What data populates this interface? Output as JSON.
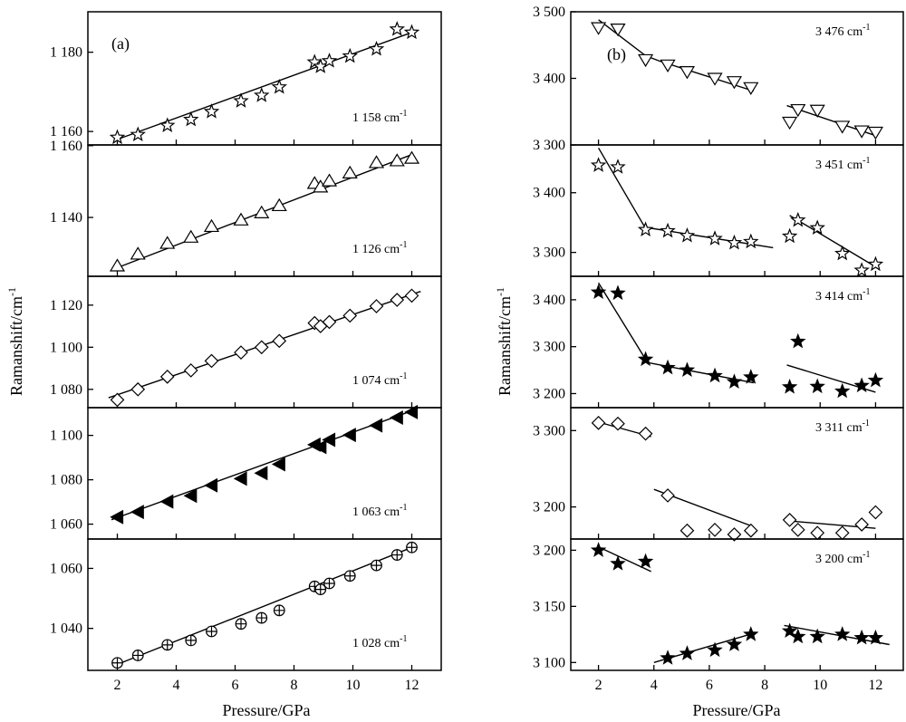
{
  "chart_data": [
    {
      "panel": "a",
      "type": "scatter",
      "panel_label": "(a)",
      "xlabel": "Pressure/GPa",
      "ylabel": "Ramanshift/cm-1",
      "ylabel_main": "Ramanshift/cm",
      "ylabel_sup": "-1",
      "xlim": [
        1,
        13
      ],
      "xticks": [
        2,
        4,
        6,
        8,
        10,
        12
      ],
      "xtick_labels": [
        "2",
        "4",
        "6",
        "8",
        "10",
        "12"
      ],
      "subplots": [
        {
          "mode": "1 158 cm-1",
          "mode_main": "1 158 cm",
          "mode_sup": "-1",
          "marker": "star-open",
          "ylim": [
            1156.6,
            1190.2
          ],
          "yticks": [
            1160,
            1180
          ],
          "ytick_labels": [
            "1 160",
            "1 180"
          ],
          "points": [
            [
              2.0,
              1158.5
            ],
            [
              2.7,
              1159.2
            ],
            [
              3.7,
              1161.5
            ],
            [
              4.5,
              1163.0
            ],
            [
              5.2,
              1165.0
            ],
            [
              6.2,
              1167.7
            ],
            [
              6.9,
              1169.1
            ],
            [
              7.5,
              1171.2
            ],
            [
              8.7,
              1177.5
            ],
            [
              8.9,
              1176.4
            ],
            [
              9.2,
              1177.8
            ],
            [
              9.9,
              1179.0
            ],
            [
              10.8,
              1180.8
            ],
            [
              11.5,
              1185.8
            ],
            [
              12.0,
              1185.0
            ]
          ],
          "fits": [
            [
              [
                2.0,
                1158.0
              ],
              [
                12.0,
                1185.0
              ]
            ]
          ]
        },
        {
          "mode": "1 126 cm-1",
          "mode_main": "1 126 cm",
          "mode_sup": "-1",
          "marker": "triangle-up-open",
          "ylim": [
            1123.6,
            1160.2
          ],
          "yticks": [
            1140,
            1160
          ],
          "ytick_labels": [
            "1 140",
            "1 160"
          ],
          "points": [
            [
              2.0,
              1126.5
            ],
            [
              2.7,
              1129.8
            ],
            [
              3.7,
              1132.8
            ],
            [
              4.5,
              1134.5
            ],
            [
              5.2,
              1137.5
            ],
            [
              6.2,
              1139.3
            ],
            [
              6.9,
              1141.3
            ],
            [
              7.5,
              1143.3
            ],
            [
              8.7,
              1149.5
            ],
            [
              8.9,
              1148.5
            ],
            [
              9.2,
              1150.2
            ],
            [
              9.9,
              1152.4
            ],
            [
              10.8,
              1155.3
            ],
            [
              11.5,
              1155.8
            ],
            [
              12.0,
              1156.5
            ]
          ],
          "fits": [
            [
              [
                2.0,
                1126.0
              ],
              [
                12.0,
                1157.5
              ]
            ]
          ]
        },
        {
          "mode": "1 074 cm-1",
          "mode_main": "1 074 cm",
          "mode_sup": "-1",
          "marker": "diamond-open",
          "ylim": [
            1071.3,
            1133.7
          ],
          "yticks": [
            1080,
            1100,
            1120
          ],
          "ytick_labels": [
            "1 080",
            "1 100",
            "1 120"
          ],
          "points": [
            [
              2.0,
              1075.0
            ],
            [
              2.7,
              1080.0
            ],
            [
              3.7,
              1086.0
            ],
            [
              4.5,
              1089.0
            ],
            [
              5.2,
              1093.5
            ],
            [
              6.2,
              1097.5
            ],
            [
              6.9,
              1100.0
            ],
            [
              7.5,
              1103.0
            ],
            [
              8.7,
              1111.5
            ],
            [
              8.9,
              1110.0
            ],
            [
              9.2,
              1112.0
            ],
            [
              9.9,
              1115.0
            ],
            [
              10.8,
              1119.5
            ],
            [
              11.5,
              1122.5
            ],
            [
              12.0,
              1124.5
            ]
          ],
          "fits": [
            [
              [
                1.7,
                1076.0
              ],
              [
                12.3,
                1126.5
              ]
            ]
          ]
        },
        {
          "mode": "1 063 cm-1",
          "mode_main": "1 063 cm",
          "mode_sup": "-1",
          "marker": "triangle-left-filled",
          "ylim": [
            1053.3,
            1112.5
          ],
          "yticks": [
            1060,
            1080,
            1100
          ],
          "ytick_labels": [
            "1 060",
            "1 080",
            "1 100"
          ],
          "points": [
            [
              2.0,
              1063.2
            ],
            [
              2.7,
              1065.5
            ],
            [
              3.7,
              1070.2
            ],
            [
              4.5,
              1072.8
            ],
            [
              5.2,
              1077.5
            ],
            [
              6.2,
              1080.5
            ],
            [
              6.9,
              1083.0
            ],
            [
              7.5,
              1087.0
            ],
            [
              8.7,
              1095.8
            ],
            [
              8.9,
              1094.8
            ],
            [
              9.2,
              1098.0
            ],
            [
              9.9,
              1100.2
            ],
            [
              10.8,
              1104.5
            ],
            [
              11.5,
              1108.0
            ],
            [
              12.0,
              1110.5
            ]
          ],
          "fits": [
            [
              [
                1.8,
                1062.0
              ],
              [
                12.2,
                1112.0
              ]
            ]
          ]
        },
        {
          "mode": "1 028 cm-1",
          "mode_main": "1 028 cm",
          "mode_sup": "-1",
          "marker": "circle-plus",
          "ylim": [
            1026.0,
            1069.8
          ],
          "yticks": [
            1040,
            1060
          ],
          "ytick_labels": [
            "1 040",
            "1 060"
          ],
          "points": [
            [
              2.0,
              1028.5
            ],
            [
              2.7,
              1031.0
            ],
            [
              3.7,
              1034.5
            ],
            [
              4.5,
              1036.0
            ],
            [
              5.2,
              1039.0
            ],
            [
              6.2,
              1041.5
            ],
            [
              6.9,
              1043.5
            ],
            [
              7.5,
              1046.0
            ],
            [
              8.7,
              1054.0
            ],
            [
              8.9,
              1053.0
            ],
            [
              9.2,
              1055.0
            ],
            [
              9.9,
              1057.5
            ],
            [
              10.8,
              1061.0
            ],
            [
              11.5,
              1064.5
            ],
            [
              12.0,
              1067.0
            ]
          ],
          "fits": [
            [
              [
                2.0,
                1028.0
              ],
              [
                12.0,
                1067.0
              ]
            ]
          ]
        }
      ]
    },
    {
      "panel": "b",
      "type": "scatter",
      "panel_label": "(b)",
      "xlabel": "Pressure/GPa",
      "ylabel": "Ramanshift/cm-1",
      "ylabel_main": "Ramanshift/cm",
      "ylabel_sup": "-1",
      "xlim": [
        1,
        13
      ],
      "xticks": [
        2,
        4,
        6,
        8,
        10,
        12
      ],
      "xtick_labels": [
        "2",
        "4",
        "6",
        "8",
        "10",
        "12"
      ],
      "subplots": [
        {
          "mode": "3 476 cm-1",
          "mode_main": "3 476 cm",
          "mode_sup": "-1",
          "marker": "triangle-down-open",
          "ylim": [
            3300,
            3500
          ],
          "yticks": [
            3300,
            3400,
            3500
          ],
          "ytick_labels": [
            "3 300",
            "3 400",
            "3 500"
          ],
          "points": [
            [
              2.0,
              3476
            ],
            [
              2.7,
              3474
            ],
            [
              3.7,
              3428
            ],
            [
              4.5,
              3420
            ],
            [
              5.2,
              3410
            ],
            [
              6.2,
              3400
            ],
            [
              6.9,
              3395
            ],
            [
              7.5,
              3386
            ],
            [
              8.9,
              3334
            ],
            [
              9.2,
              3353
            ],
            [
              9.9,
              3352
            ],
            [
              10.8,
              3328
            ],
            [
              11.5,
              3321
            ],
            [
              12.0,
              3319
            ]
          ],
          "fits": [
            [
              [
                2.0,
                3488
              ],
              [
                3.7,
                3434
              ],
              [
                4.2,
                3426
              ],
              [
                7.6,
                3381
              ]
            ],
            [
              [
                8.8,
                3359
              ],
              [
                12.0,
                3314
              ]
            ]
          ]
        },
        {
          "mode": "3 451 cm-1",
          "mode_main": "3 451 cm",
          "mode_sup": "-1",
          "marker": "star-open",
          "ylim": [
            3260,
            3480
          ],
          "yticks": [
            3300,
            3400
          ],
          "ytick_labels": [
            "3 300",
            "3 400"
          ],
          "points": [
            [
              2.0,
              3446
            ],
            [
              2.7,
              3443
            ],
            [
              3.7,
              3338
            ],
            [
              4.5,
              3336
            ],
            [
              5.2,
              3328
            ],
            [
              6.2,
              3323
            ],
            [
              6.9,
              3316
            ],
            [
              7.5,
              3318
            ],
            [
              8.9,
              3327
            ],
            [
              9.2,
              3354
            ],
            [
              9.9,
              3341
            ],
            [
              10.8,
              3298
            ],
            [
              11.5,
              3270
            ],
            [
              12.0,
              3280
            ]
          ],
          "fits": [
            [
              [
                2.0,
                3475
              ],
              [
                3.7,
                3340
              ]
            ],
            [
              [
                3.7,
                3342
              ],
              [
                8.3,
                3308
              ]
            ],
            [
              [
                8.9,
                3362
              ],
              [
                12.0,
                3276
              ]
            ]
          ]
        },
        {
          "mode": "3 414 cm-1",
          "mode_main": "3 414 cm",
          "mode_sup": "-1",
          "marker": "star-filled",
          "ylim": [
            3170,
            3450
          ],
          "yticks": [
            3200,
            3300,
            3400
          ],
          "ytick_labels": [
            "3 200",
            "3 300",
            "3 400"
          ],
          "points": [
            [
              2.0,
              3416
            ],
            [
              2.7,
              3414
            ],
            [
              3.7,
              3273
            ],
            [
              4.5,
              3255
            ],
            [
              5.2,
              3250
            ],
            [
              6.2,
              3238
            ],
            [
              6.9,
              3225
            ],
            [
              7.5,
              3235
            ],
            [
              8.9,
              3214
            ],
            [
              9.2,
              3311
            ],
            [
              9.9,
              3215
            ],
            [
              10.8,
              3205
            ],
            [
              11.5,
              3217
            ],
            [
              12.0,
              3228
            ]
          ],
          "fits": [
            [
              [
                2.0,
                3436
              ],
              [
                3.7,
                3273
              ]
            ],
            [
              [
                3.7,
                3267
              ],
              [
                7.6,
                3223
              ]
            ],
            [
              [
                8.8,
                3261
              ],
              [
                12.0,
                3203
              ]
            ]
          ]
        },
        {
          "mode": "3 311 cm-1",
          "mode_main": "3 311 cm",
          "mode_sup": "-1",
          "marker": "diamond-open",
          "ylim": [
            3158,
            3330
          ],
          "yticks": [
            3200,
            3300
          ],
          "ytick_labels": [
            "3 200",
            "3 300"
          ],
          "points": [
            [
              2.0,
              3310
            ],
            [
              2.7,
              3309
            ],
            [
              3.7,
              3296
            ],
            [
              4.5,
              3215
            ],
            [
              5.2,
              3169
            ],
            [
              6.2,
              3170
            ],
            [
              6.9,
              3164
            ],
            [
              7.5,
              3169
            ],
            [
              8.9,
              3183
            ],
            [
              9.2,
              3170
            ],
            [
              9.9,
              3166
            ],
            [
              10.8,
              3166
            ],
            [
              11.5,
              3177
            ],
            [
              12.0,
              3193
            ]
          ],
          "fits": [
            [
              [
                2.0,
                3311
              ],
              [
                3.9,
                3292
              ]
            ],
            [
              [
                4.0,
                3223
              ],
              [
                7.6,
                3174
              ]
            ],
            [
              [
                8.8,
                3182
              ],
              [
                12.0,
                3172
              ]
            ]
          ]
        },
        {
          "mode": "3 200 cm-1",
          "mode_main": "3 200 cm",
          "mode_sup": "-1",
          "marker": "star-filled",
          "ylim": [
            3093,
            3210
          ],
          "yticks": [
            3100,
            3150,
            3200
          ],
          "ytick_labels": [
            "3 100",
            "3 150",
            "3 200"
          ],
          "points": [
            [
              2.0,
              3200
            ],
            [
              2.7,
              3188
            ],
            [
              3.7,
              3190
            ],
            [
              4.5,
              3104
            ],
            [
              5.2,
              3108
            ],
            [
              6.2,
              3111
            ],
            [
              6.9,
              3116
            ],
            [
              7.5,
              3125
            ],
            [
              8.9,
              3128
            ],
            [
              9.2,
              3123
            ],
            [
              9.9,
              3123
            ],
            [
              10.8,
              3125
            ],
            [
              11.5,
              3122
            ],
            [
              12.0,
              3122
            ]
          ],
          "fits": [
            [
              [
                2.0,
                3203
              ],
              [
                3.9,
                3181
              ]
            ],
            [
              [
                4.0,
                3100
              ],
              [
                7.6,
                3126
              ]
            ],
            [
              [
                8.7,
                3133
              ],
              [
                12.5,
                3116
              ]
            ]
          ]
        }
      ]
    }
  ]
}
